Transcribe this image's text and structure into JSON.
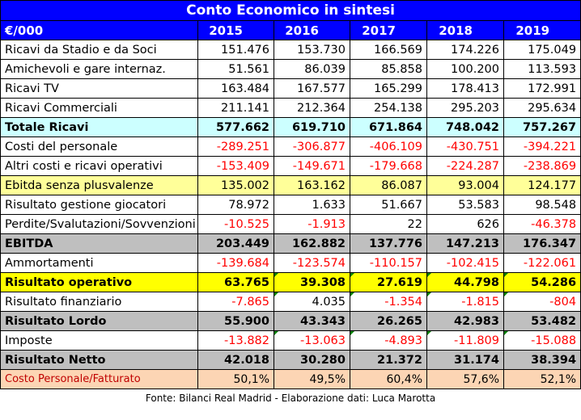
{
  "title": "Conto Economico in sintesi",
  "header": {
    "unit": "€/000",
    "years": [
      "2015",
      "2016",
      "2017",
      "2018",
      "2019"
    ]
  },
  "rows": [
    {
      "label": "Ricavi da Stadio e da Soci",
      "values": [
        "151.476",
        "153.730",
        "166.569",
        "174.226",
        "175.049"
      ]
    },
    {
      "label": "Amichevoli e gare internaz.",
      "values": [
        "51.561",
        "86.039",
        "85.858",
        "100.200",
        "113.593"
      ]
    },
    {
      "label": "Ricavi TV",
      "values": [
        "163.484",
        "167.577",
        "165.299",
        "178.413",
        "172.991"
      ]
    },
    {
      "label": "Ricavi Commerciali",
      "values": [
        "211.141",
        "212.364",
        "254.138",
        "295.203",
        "295.634"
      ]
    },
    {
      "label": "Totale Ricavi",
      "values": [
        "577.662",
        "619.710",
        "671.864",
        "748.042",
        "757.267"
      ]
    },
    {
      "label": "Costi del personale",
      "values": [
        "-289.251",
        "-306.877",
        "-406.109",
        "-430.751",
        "-394.221"
      ]
    },
    {
      "label": "Altri costi e ricavi operativi",
      "values": [
        "-153.409",
        "-149.671",
        "-179.668",
        "-224.287",
        "-238.869"
      ]
    },
    {
      "label": "Ebitda senza plusvalenze",
      "values": [
        "135.002",
        "163.162",
        "86.087",
        "93.004",
        "124.177"
      ]
    },
    {
      "label": "Risultato gestione giocatori",
      "values": [
        "78.972",
        "1.633",
        "51.667",
        "53.583",
        "98.548"
      ]
    },
    {
      "label": "Perdite/Svalutazioni/Sovvenzioni",
      "values": [
        "-10.525",
        "-1.913",
        "22",
        "626",
        "-46.378"
      ]
    },
    {
      "label": "EBITDA",
      "values": [
        "203.449",
        "162.882",
        "137.776",
        "147.213",
        "176.347"
      ]
    },
    {
      "label": "Ammortamenti",
      "values": [
        "-139.684",
        "-123.574",
        "-110.157",
        "-102.415",
        "-122.061"
      ]
    },
    {
      "label": "Risultato operativo",
      "values": [
        "63.765",
        "39.308",
        "27.619",
        "44.798",
        "54.286"
      ]
    },
    {
      "label": "Risultato finanziario",
      "values": [
        "-7.865",
        "4.035",
        "-1.354",
        "-1.815",
        "-804"
      ]
    },
    {
      "label": "Risultato Lordo",
      "values": [
        "55.900",
        "43.343",
        "26.265",
        "42.983",
        "53.482"
      ]
    },
    {
      "label": "Imposte",
      "values": [
        "-13.882",
        "-13.063",
        "-4.893",
        "-11.809",
        "-15.088"
      ]
    },
    {
      "label": "Risultato Netto",
      "values": [
        "42.018",
        "30.280",
        "21.372",
        "31.174",
        "38.394"
      ]
    },
    {
      "label": "Costo Personale/Fatturato",
      "values": [
        "50,1%",
        "49,5%",
        "60,4%",
        "57,6%",
        "52,1%"
      ]
    }
  ],
  "footer": {
    "source": "Fonte: Bilanci Real Madrid   -   Elaborazione dati: Luca Marotta"
  }
}
